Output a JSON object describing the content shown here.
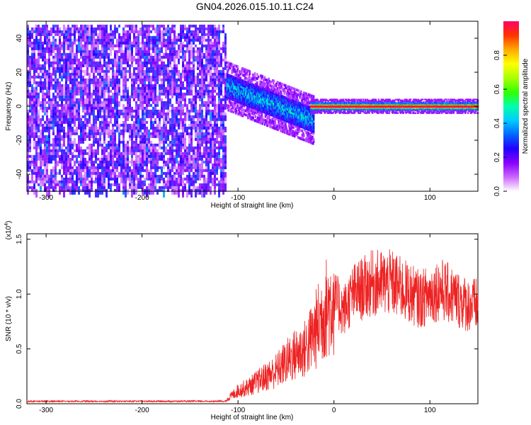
{
  "title": "GN04.2026.015.10.11.C24",
  "chart_data": [
    {
      "type": "heatmap",
      "xlabel": "Height of straight line (km)",
      "ylabel": "Frequency (Hz)",
      "xlim": [
        -320,
        150
      ],
      "ylim": [
        -50,
        50
      ],
      "xticks": [
        -300,
        -200,
        -100,
        0,
        100
      ],
      "yticks": [
        -40,
        -20,
        0,
        20,
        40
      ],
      "colorbar": {
        "label": "Normalized spectral amplitude",
        "range": [
          0,
          1
        ],
        "ticks": [
          "0.0",
          "0.2",
          "0.4",
          "0.6",
          "0.8"
        ],
        "colors": [
          "#ffffff",
          "#cc66ff",
          "#8800ff",
          "#2200ff",
          "#0066ff",
          "#00ccff",
          "#00ffaa",
          "#33ff00",
          "#aaff00",
          "#ffff00",
          "#ffaa00",
          "#ff3300",
          "#ff0066"
        ]
      },
      "regions": [
        {
          "x_range": [
            -320,
            -112
          ],
          "freq_range": [
            -50,
            48
          ],
          "amplitude": "0.1–0.3, broadband noise"
        },
        {
          "x_range": [
            -112,
            -22
          ],
          "freq_center": [
            12,
            -8
          ],
          "freq_halfwidth": 7,
          "amplitude": "0.3–0.5"
        },
        {
          "x_range": [
            -25,
            150
          ],
          "freq_center": 0,
          "freq_halfwidth": 2,
          "amplitude": "0.9–1.0"
        }
      ]
    },
    {
      "type": "line",
      "xlabel": "Height of straight line (km)",
      "ylabel": "SNR (10 * v/v)",
      "y_multiplier": "(x10^4)",
      "xlim": [
        -320,
        150
      ],
      "ylim": [
        0,
        1.55
      ],
      "xticks": [
        -300,
        -200,
        -100,
        0,
        100
      ],
      "yticks": [
        "0.0",
        "0.5",
        "1.0",
        "1.5"
      ],
      "series": [
        {
          "color": "#ee2222",
          "x": [
            -320,
            -280,
            -240,
            -200,
            -160,
            -120,
            -110,
            -100,
            -90,
            -80,
            -70,
            -60,
            -50,
            -40,
            -30,
            -20,
            -10,
            -5,
            0,
            10,
            20,
            30,
            40,
            50,
            60,
            70,
            80,
            90,
            100,
            110,
            120,
            130,
            140,
            150
          ],
          "y": [
            0.02,
            0.02,
            0.02,
            0.02,
            0.02,
            0.02,
            0.05,
            0.12,
            0.15,
            0.2,
            0.25,
            0.3,
            0.38,
            0.45,
            0.5,
            0.65,
            0.85,
            0.9,
            0.95,
            0.85,
            1.0,
            1.05,
            1.1,
            1.1,
            1.1,
            1.05,
            1.0,
            0.95,
            1.0,
            1.05,
            1.0,
            0.95,
            0.9,
            0.9
          ]
        }
      ]
    }
  ]
}
